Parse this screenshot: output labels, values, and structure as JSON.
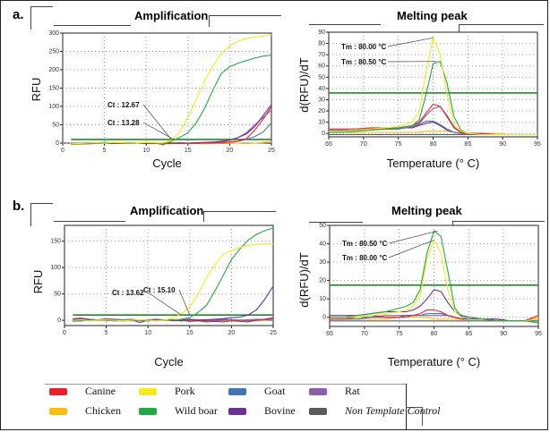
{
  "panels": [
    {
      "label": "a."
    },
    {
      "label": "b."
    }
  ],
  "legend": [
    {
      "name": "Canine",
      "color": "#e8202a",
      "italic": false
    },
    {
      "name": "Pork",
      "color": "#f2ea1c",
      "italic": false
    },
    {
      "name": "Goat",
      "color": "#4672b8",
      "italic": false
    },
    {
      "name": "Rat",
      "color": "#8a5fa8",
      "italic": false
    },
    {
      "name": "Chicken",
      "color": "#fbbd15",
      "italic": false
    },
    {
      "name": "Wild boar",
      "color": "#22a845",
      "italic": false
    },
    {
      "name": "Bovine",
      "color": "#6a3293",
      "italic": false
    },
    {
      "name": "Non Template Control",
      "color": "#5a5a5a",
      "italic": true
    }
  ],
  "chart_data": [
    {
      "id": "a-amplification",
      "type": "line",
      "title": "Amplification",
      "xlabel": "Cycle",
      "ylabel": "RFU",
      "xlim": [
        0,
        25
      ],
      "ylim": [
        0,
        300
      ],
      "xticks": [
        0,
        5,
        10,
        15,
        20,
        25
      ],
      "yticks": [
        0,
        50,
        100,
        150,
        200,
        250,
        300
      ],
      "grid": true,
      "threshold": 10,
      "annotations": [
        {
          "text": "Ct : 12.67",
          "x": 13,
          "y": 10
        },
        {
          "text": "Ct : 13.28",
          "x": 13.3,
          "y": 10
        }
      ],
      "x": [
        1,
        2,
        3,
        4,
        5,
        6,
        7,
        8,
        9,
        10,
        11,
        12,
        13,
        14,
        15,
        16,
        17,
        18,
        19,
        20,
        21,
        22,
        23,
        24,
        25
      ],
      "series": [
        {
          "name": "Pork",
          "values": [
            -2,
            -1,
            0,
            1,
            0,
            2,
            1,
            0,
            1,
            2,
            1,
            0,
            8,
            30,
            70,
            120,
            170,
            210,
            245,
            265,
            278,
            285,
            289,
            292,
            295
          ]
        },
        {
          "name": "Wild boar",
          "values": [
            -1,
            0,
            1,
            0,
            2,
            1,
            0,
            1,
            0,
            1,
            2,
            -5,
            5,
            15,
            28,
            55,
            95,
            145,
            190,
            208,
            218,
            225,
            232,
            237,
            240
          ]
        },
        {
          "name": "Canine",
          "values": [
            -3,
            -2,
            -1,
            0,
            1,
            0,
            -1,
            0,
            1,
            0,
            -1,
            -2,
            -1,
            0,
            -1,
            0,
            1,
            0,
            2,
            3,
            5,
            12,
            35,
            65,
            100
          ]
        },
        {
          "name": "Bovine",
          "values": [
            -2,
            -1,
            0,
            1,
            0,
            -1,
            0,
            1,
            0,
            -1,
            0,
            -1,
            0,
            -1,
            0,
            1,
            2,
            3,
            5,
            8,
            15,
            25,
            45,
            75,
            105
          ]
        },
        {
          "name": "Goat",
          "values": [
            -3,
            -2,
            -2,
            -1,
            0,
            -1,
            0,
            -1,
            0,
            1,
            0,
            -1,
            0,
            1,
            0,
            -1,
            0,
            1,
            2,
            3,
            5,
            10,
            18,
            30,
            55
          ]
        },
        {
          "name": "Rat",
          "values": [
            -2,
            -1,
            0,
            1,
            0,
            1,
            0,
            -1,
            0,
            1,
            0,
            -1,
            0,
            -1,
            0,
            1,
            0,
            1,
            3,
            8,
            15,
            28,
            50,
            70,
            90
          ]
        },
        {
          "name": "Chicken",
          "values": [
            -4,
            -3,
            -2,
            -1,
            0,
            1,
            2,
            1,
            0,
            -1,
            0,
            1,
            2,
            1,
            0,
            -1,
            -2,
            -1,
            0,
            1,
            0,
            -1,
            0,
            2,
            5
          ]
        },
        {
          "name": "Non Template Control",
          "values": [
            -2,
            -2,
            -1,
            -1,
            0,
            0,
            -1,
            0,
            0,
            -1,
            0,
            0,
            -1,
            0,
            0,
            -1,
            0,
            0,
            -1,
            0,
            0,
            -1,
            0,
            0,
            -1
          ]
        }
      ]
    },
    {
      "id": "a-melting",
      "type": "line",
      "title": "Melting peak",
      "xlabel": "Temperature (° C)",
      "ylabel": "d(RFU)/dT",
      "xlim": [
        65,
        95
      ],
      "ylim": [
        -3,
        90
      ],
      "xticks": [
        65,
        70,
        75,
        80,
        85,
        90,
        95
      ],
      "yticks": [
        0,
        10,
        20,
        30,
        40,
        50,
        60,
        70,
        80,
        90
      ],
      "grid": true,
      "threshold": 36,
      "annotations": [
        {
          "text": "Tm : 80.00 °C",
          "x": 80,
          "y": 85
        },
        {
          "text": "Tm : 80.50 °C",
          "x": 80.5,
          "y": 64
        }
      ],
      "x": [
        65,
        67,
        69,
        71,
        73,
        75,
        76,
        77,
        78,
        79,
        80,
        81,
        82,
        83,
        84,
        85,
        87,
        89,
        91,
        93,
        95
      ],
      "series": [
        {
          "name": "Pork",
          "values": [
            2,
            2,
            3,
            4,
            5,
            6,
            8,
            10,
            20,
            55,
            85,
            70,
            35,
            8,
            2,
            0,
            -1,
            -1,
            -1,
            -1,
            -1
          ]
        },
        {
          "name": "Wild boar",
          "values": [
            1,
            1,
            2,
            3,
            4,
            5,
            6,
            7,
            12,
            35,
            62,
            64,
            45,
            15,
            3,
            0,
            -1,
            -1,
            -1,
            -1,
            -1
          ]
        },
        {
          "name": "Canine",
          "values": [
            4,
            4,
            4,
            5,
            5,
            5,
            6,
            7,
            10,
            18,
            26,
            24,
            15,
            5,
            1,
            0,
            0,
            -1,
            -1,
            -1,
            -1
          ]
        },
        {
          "name": "Rat",
          "values": [
            3,
            3,
            3,
            4,
            4,
            4,
            5,
            6,
            9,
            16,
            22,
            24,
            16,
            6,
            1,
            0,
            0,
            -1,
            -1,
            -1,
            -1
          ]
        },
        {
          "name": "Goat",
          "values": [
            2,
            2,
            3,
            3,
            4,
            4,
            5,
            6,
            8,
            11,
            11,
            8,
            4,
            1,
            0,
            0,
            0,
            -1,
            -1,
            -1,
            -1
          ]
        },
        {
          "name": "Bovine",
          "values": [
            3,
            3,
            3,
            4,
            4,
            4,
            5,
            5,
            7,
            9,
            10,
            7,
            3,
            1,
            0,
            0,
            0,
            -1,
            -1,
            -1,
            -1
          ]
        },
        {
          "name": "Chicken",
          "values": [
            1,
            1,
            1,
            1,
            1,
            1,
            1,
            1,
            1,
            2,
            2,
            2,
            2,
            1,
            1,
            0,
            0,
            0,
            -1,
            -1,
            -1
          ]
        },
        {
          "name": "Non Template Control",
          "values": [
            -1,
            -1,
            -1,
            -1,
            -1,
            -1,
            -1,
            -1,
            -1,
            -1,
            -1,
            -1,
            -1,
            -1,
            -1,
            -1,
            -1,
            -1,
            -1,
            -1,
            -1
          ]
        }
      ]
    },
    {
      "id": "b-amplification",
      "type": "line",
      "title": "Amplification",
      "xlabel": "Cycle",
      "ylabel": "RFU",
      "xlim": [
        0,
        25
      ],
      "ylim": [
        -10,
        180
      ],
      "xticks": [
        0,
        5,
        10,
        15,
        20,
        25
      ],
      "yticks": [
        0,
        50,
        100,
        150
      ],
      "grid": true,
      "threshold": 10,
      "annotations": [
        {
          "text": "Ct : 13.62",
          "x": 14,
          "y": 10
        },
        {
          "text": "Ct : 15.10",
          "x": 15,
          "y": 10
        }
      ],
      "x": [
        1,
        2,
        3,
        4,
        5,
        6,
        7,
        8,
        9,
        10,
        11,
        12,
        13,
        14,
        15,
        16,
        17,
        18,
        19,
        20,
        21,
        22,
        23,
        24,
        25
      ],
      "series": [
        {
          "name": "Pork",
          "values": [
            0,
            1,
            -1,
            0,
            1,
            0,
            -1,
            0,
            1,
            0,
            -1,
            0,
            5,
            12,
            25,
            50,
            80,
            105,
            125,
            132,
            138,
            142,
            144,
            145,
            145
          ]
        },
        {
          "name": "Wild boar",
          "values": [
            -2,
            -1,
            0,
            1,
            0,
            -1,
            0,
            1,
            0,
            -1,
            0,
            1,
            0,
            2,
            5,
            15,
            28,
            55,
            85,
            115,
            135,
            152,
            163,
            170,
            175
          ]
        },
        {
          "name": "Bovine",
          "values": [
            2,
            3,
            1,
            0,
            2,
            1,
            0,
            1,
            -4,
            0,
            1,
            0,
            1,
            0,
            1,
            0,
            1,
            2,
            3,
            5,
            6,
            10,
            20,
            40,
            65
          ]
        },
        {
          "name": "Canine",
          "values": [
            1,
            0,
            -1,
            0,
            1,
            -1,
            0,
            1,
            0,
            -1,
            0,
            1,
            -1,
            0,
            -2,
            -1,
            -3,
            -2,
            -3,
            -1,
            -2,
            -3,
            0,
            2,
            5
          ]
        },
        {
          "name": "Goat",
          "values": [
            0,
            -1,
            0,
            1,
            0,
            -1,
            0,
            1,
            0,
            -1,
            0,
            1,
            0,
            -1,
            0,
            1,
            0,
            -1,
            0,
            1,
            0,
            -1,
            0,
            1,
            3
          ]
        },
        {
          "name": "Rat",
          "values": [
            3,
            4,
            2,
            1,
            3,
            2,
            1,
            2,
            0,
            1,
            2,
            1,
            0,
            1,
            2,
            1,
            0,
            1,
            2,
            1,
            0,
            1,
            2,
            1,
            0
          ]
        },
        {
          "name": "Chicken",
          "values": [
            -1,
            0,
            1,
            0,
            -1,
            0,
            -2,
            0,
            1,
            0,
            -1,
            0,
            1,
            0,
            -1,
            0,
            1,
            0,
            -1,
            0,
            1,
            0,
            -1,
            0,
            1
          ]
        },
        {
          "name": "Non Template Control",
          "values": [
            -1,
            -1,
            0,
            0,
            -1,
            0,
            0,
            -1,
            0,
            0,
            -1,
            0,
            0,
            -1,
            0,
            0,
            -1,
            0,
            0,
            -1,
            0,
            0,
            -1,
            0,
            0
          ]
        }
      ]
    },
    {
      "id": "b-melting",
      "type": "line",
      "title": "Melting peak",
      "xlabel": "Temperature (° C)",
      "ylabel": "d(RFU)/dT",
      "xlim": [
        65,
        95
      ],
      "ylim": [
        -5,
        50
      ],
      "xticks": [
        65,
        70,
        75,
        80,
        85,
        90,
        95
      ],
      "yticks": [
        0,
        10,
        20,
        30,
        40,
        50
      ],
      "grid": true,
      "threshold": 17.5,
      "annotations": [
        {
          "text": "Tm : 80.50 °C",
          "x": 80.5,
          "y": 47
        },
        {
          "text": "Tm : 80.00 °C",
          "x": 80,
          "y": 42
        }
      ],
      "x": [
        65,
        67,
        69,
        71,
        73,
        75,
        76,
        77,
        78,
        79,
        80,
        81,
        82,
        83,
        84,
        85,
        87,
        89,
        91,
        93,
        95
      ],
      "series": [
        {
          "name": "Wild boar",
          "values": [
            0,
            0,
            1,
            2,
            3,
            5,
            6,
            8,
            15,
            35,
            47,
            44,
            25,
            5,
            0,
            -1,
            -1,
            -2,
            -2,
            -2,
            -3
          ]
        },
        {
          "name": "Pork",
          "values": [
            0,
            0,
            0,
            1,
            2,
            3,
            4,
            6,
            12,
            32,
            42,
            35,
            15,
            3,
            0,
            -1,
            -1,
            -2,
            -2,
            -2,
            -1
          ]
        },
        {
          "name": "Bovine",
          "values": [
            1,
            1,
            1,
            2,
            3,
            3,
            3,
            4,
            6,
            10,
            15,
            14,
            8,
            3,
            1,
            0,
            -1,
            -1,
            -2,
            -2,
            -1
          ]
        },
        {
          "name": "Canine",
          "values": [
            -1,
            -1,
            0,
            1,
            0,
            0,
            1,
            1,
            2,
            4,
            4,
            3,
            1,
            0,
            -1,
            -1,
            -1,
            -2,
            -2,
            -2,
            1
          ]
        },
        {
          "name": "Goat",
          "values": [
            -1,
            -1,
            -1,
            0,
            0,
            0,
            0,
            1,
            1,
            2,
            2,
            2,
            1,
            0,
            -1,
            -1,
            -1,
            -2,
            -2,
            -2,
            -2
          ]
        },
        {
          "name": "Rat",
          "values": [
            0,
            0,
            0,
            0,
            1,
            1,
            1,
            1,
            1,
            1,
            1,
            1,
            1,
            0,
            -1,
            -1,
            -1,
            -1,
            -2,
            -2,
            -1
          ]
        },
        {
          "name": "Chicken",
          "values": [
            -1,
            -1,
            -1,
            -1,
            -1,
            0,
            0,
            0,
            0,
            0,
            -1,
            -1,
            -1,
            -1,
            -1,
            -1,
            -1,
            -1,
            -2,
            -2,
            0
          ]
        },
        {
          "name": "Non Template Control",
          "values": [
            -2,
            -2,
            -2,
            -2,
            -2,
            -2,
            -2,
            -2,
            -2,
            -2,
            -2,
            -2,
            -2,
            -2,
            -2,
            -2,
            -2,
            -2,
            -2,
            -2,
            -2
          ]
        }
      ]
    }
  ]
}
